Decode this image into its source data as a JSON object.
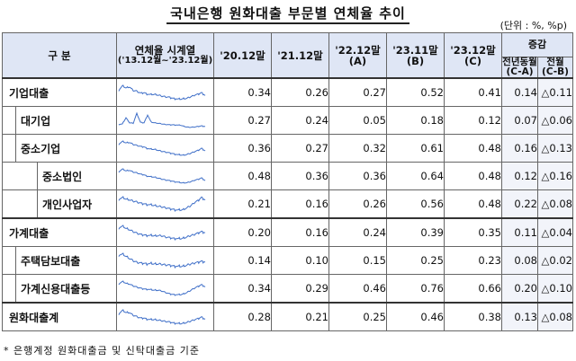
{
  "title": "국내은행 원화대출 부문별 연체율 추이",
  "unit": "(단위 : %, %p)",
  "header": {
    "category": "구  분",
    "spark_label": "연체율 시계열",
    "spark_sub": "('13.12월~'23.12월)",
    "cols": [
      {
        "label": "'20.12말",
        "sub": ""
      },
      {
        "label": "'21.12말",
        "sub": ""
      },
      {
        "label": "'22.12말",
        "sub": "(A)"
      },
      {
        "label": "'23.11말",
        "sub": "(B)"
      },
      {
        "label": "'23.12말",
        "sub": "(C)"
      }
    ],
    "change_group": "증감",
    "change_cols": [
      {
        "label": "전년동월",
        "sub": "(C-A)"
      },
      {
        "label": "전월",
        "sub": "(C-B)"
      }
    ]
  },
  "rows": [
    {
      "name": "기업대출",
      "indent": 0,
      "values": [
        "0.34",
        "0.26",
        "0.27",
        "0.52",
        "0.41"
      ],
      "yoy": "0.14",
      "mom": "△0.11",
      "series": [
        0.62,
        0.78,
        0.7,
        0.74,
        0.6,
        0.58,
        0.5,
        0.52,
        0.46,
        0.44,
        0.45,
        0.42,
        0.38,
        0.36,
        0.34,
        0.3,
        0.28,
        0.26,
        0.28,
        0.3,
        0.36,
        0.42,
        0.46,
        0.52,
        0.41
      ]
    },
    {
      "name": "대기업",
      "indent": 1,
      "values": [
        "0.27",
        "0.24",
        "0.05",
        "0.18",
        "0.12"
      ],
      "yoy": "0.07",
      "mom": "△0.06",
      "series": [
        0.3,
        0.35,
        0.9,
        0.45,
        0.4,
        1.3,
        0.5,
        0.45,
        1.15,
        0.5,
        0.45,
        0.4,
        0.35,
        0.3,
        0.28,
        0.27,
        0.25,
        0.24,
        0.15,
        0.06,
        0.05,
        0.08,
        0.12,
        0.18,
        0.12
      ]
    },
    {
      "name": "중소기업",
      "indent": 1,
      "values": [
        "0.36",
        "0.27",
        "0.32",
        "0.61",
        "0.48"
      ],
      "yoy": "0.16",
      "mom": "△0.13",
      "series": [
        0.82,
        0.95,
        0.88,
        0.9,
        0.8,
        0.76,
        0.7,
        0.68,
        0.6,
        0.56,
        0.55,
        0.5,
        0.45,
        0.42,
        0.38,
        0.34,
        0.3,
        0.27,
        0.26,
        0.3,
        0.36,
        0.44,
        0.5,
        0.61,
        0.48
      ]
    },
    {
      "name": "중소법인",
      "indent": 2,
      "values": [
        "0.48",
        "0.36",
        "0.36",
        "0.64",
        "0.48"
      ],
      "yoy": "0.12",
      "mom": "△0.16",
      "series": [
        1.0,
        1.15,
        1.05,
        1.08,
        0.98,
        0.94,
        0.86,
        0.82,
        0.74,
        0.7,
        0.68,
        0.62,
        0.56,
        0.52,
        0.48,
        0.44,
        0.4,
        0.36,
        0.34,
        0.36,
        0.42,
        0.5,
        0.55,
        0.64,
        0.48
      ]
    },
    {
      "name": "개인사업자",
      "indent": 2,
      "values": [
        "0.21",
        "0.16",
        "0.26",
        "0.56",
        "0.48"
      ],
      "yoy": "0.22",
      "mom": "△0.08",
      "series": [
        0.5,
        0.55,
        0.5,
        0.48,
        0.44,
        0.42,
        0.38,
        0.36,
        0.34,
        0.32,
        0.3,
        0.28,
        0.26,
        0.24,
        0.21,
        0.19,
        0.17,
        0.16,
        0.18,
        0.24,
        0.3,
        0.4,
        0.46,
        0.56,
        0.48
      ]
    },
    {
      "name": "가계대출",
      "indent": 0,
      "values": [
        "0.20",
        "0.16",
        "0.24",
        "0.39",
        "0.35"
      ],
      "yoy": "0.11",
      "mom": "△0.04",
      "series": [
        0.5,
        0.55,
        0.48,
        0.44,
        0.38,
        0.34,
        0.3,
        0.28,
        0.27,
        0.26,
        0.25,
        0.26,
        0.25,
        0.22,
        0.2,
        0.18,
        0.17,
        0.16,
        0.18,
        0.22,
        0.26,
        0.3,
        0.34,
        0.39,
        0.35
      ]
    },
    {
      "name": "주택담보대출",
      "indent": 1,
      "values": [
        "0.14",
        "0.10",
        "0.15",
        "0.25",
        "0.23"
      ],
      "yoy": "0.08",
      "mom": "△0.02",
      "series": [
        0.42,
        0.44,
        0.38,
        0.32,
        0.26,
        0.22,
        0.2,
        0.19,
        0.18,
        0.18,
        0.17,
        0.17,
        0.16,
        0.15,
        0.14,
        0.12,
        0.11,
        0.1,
        0.11,
        0.14,
        0.17,
        0.2,
        0.22,
        0.25,
        0.23
      ]
    },
    {
      "name": "가계신용대출등",
      "indent": 1,
      "values": [
        "0.34",
        "0.29",
        "0.46",
        "0.76",
        "0.66"
      ],
      "yoy": "0.20",
      "mom": "△0.10",
      "series": [
        0.8,
        0.9,
        0.82,
        0.78,
        0.7,
        0.65,
        0.6,
        0.56,
        0.55,
        0.52,
        0.5,
        0.5,
        0.46,
        0.4,
        0.34,
        0.31,
        0.3,
        0.29,
        0.33,
        0.4,
        0.5,
        0.6,
        0.68,
        0.76,
        0.66
      ]
    },
    {
      "name": "원화대출계",
      "indent": 0,
      "values": [
        "0.28",
        "0.21",
        "0.25",
        "0.46",
        "0.38"
      ],
      "yoy": "0.13",
      "mom": "△0.08",
      "series": [
        0.58,
        0.7,
        0.62,
        0.62,
        0.52,
        0.48,
        0.42,
        0.42,
        0.38,
        0.36,
        0.36,
        0.34,
        0.32,
        0.3,
        0.28,
        0.25,
        0.23,
        0.21,
        0.23,
        0.26,
        0.31,
        0.36,
        0.4,
        0.46,
        0.38
      ]
    }
  ],
  "footnote": "* 은행계정 원화대출금 및 신탁대출금 기준",
  "colors": {
    "header_bg": "#dfe6f5",
    "spark_line": "#3f6fc8",
    "change_bg": "#f2f4fa"
  }
}
